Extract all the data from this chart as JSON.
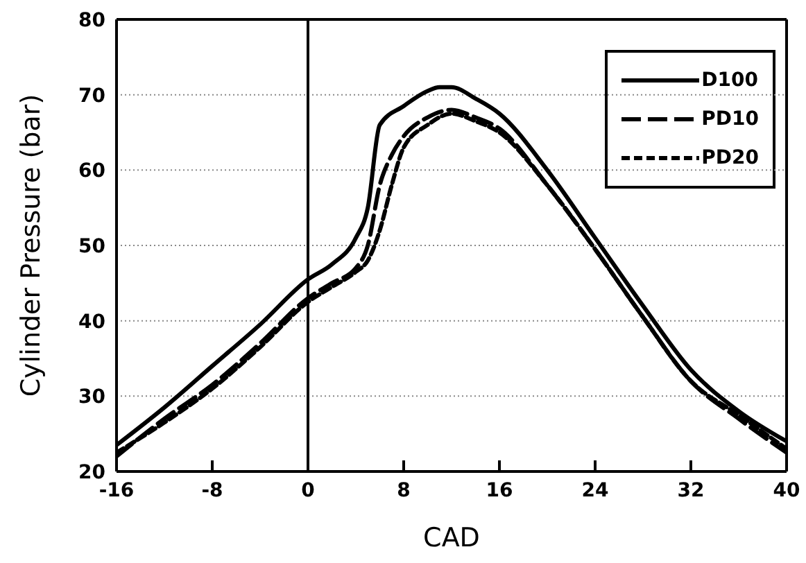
{
  "chart_data": {
    "type": "line",
    "xlabel": "CAD",
    "ylabel": "Cylinder Pressure (bar)",
    "xlim": [
      -16,
      40
    ],
    "xticks": [
      -16,
      -8,
      0,
      8,
      16,
      24,
      32,
      40
    ],
    "ylim": [
      20,
      80
    ],
    "yticks": [
      20,
      30,
      40,
      50,
      60,
      70,
      80
    ],
    "grid": "y",
    "legend": "top right",
    "marker": "none",
    "ref_lines": [
      {
        "axis": "x",
        "value": 0,
        "color": "#000000",
        "line_style": "solid"
      }
    ],
    "series": [
      {
        "name": "D100",
        "color": "#000000",
        "line_style": "solid",
        "x": [
          -16,
          -12,
          -8,
          -4,
          0,
          2,
          4,
          5,
          6,
          8,
          10,
          11,
          12,
          14,
          16,
          20,
          24,
          28,
          32,
          36,
          40
        ],
        "values": [
          23.5,
          28.5,
          34,
          39.5,
          45.5,
          47.5,
          51,
          55,
          66,
          68.5,
          70.5,
          71,
          71,
          69.5,
          67.5,
          60,
          51,
          42,
          33.5,
          28,
          24
        ]
      },
      {
        "name": "PD10",
        "color": "#000000",
        "line_style": "dashed",
        "x": [
          -16,
          -12,
          -8,
          -4,
          0,
          2,
          4,
          5,
          6,
          7,
          8,
          10,
          12,
          14,
          16,
          20,
          24,
          28,
          32,
          36,
          40
        ],
        "values": [
          22,
          27,
          31.5,
          37,
          43,
          45,
          47,
          50,
          58,
          62,
          64.5,
          67,
          68,
          67,
          65.5,
          58,
          49.5,
          40.5,
          32,
          27,
          22.5
        ]
      },
      {
        "name": "PD20",
        "color": "#000000",
        "line_style": "dotted",
        "x": [
          -16,
          -12,
          -8,
          -4,
          0,
          2,
          4,
          5,
          6,
          7,
          8,
          10,
          12,
          14,
          16,
          20,
          24,
          28,
          32,
          36,
          40
        ],
        "values": [
          22.5,
          26.5,
          31,
          36.5,
          42.5,
          44.5,
          46.5,
          48,
          52,
          58,
          63,
          66,
          67.5,
          66.5,
          65,
          58,
          49.5,
          40.5,
          32,
          27.5,
          23
        ]
      }
    ]
  }
}
